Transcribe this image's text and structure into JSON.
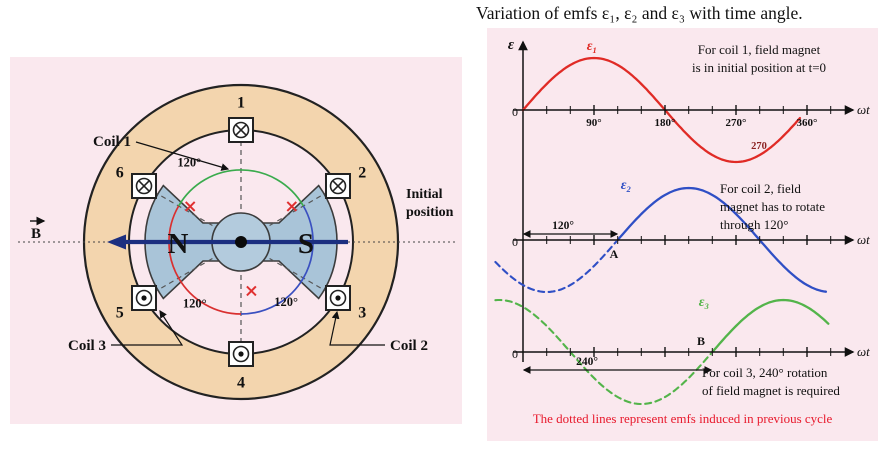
{
  "title": "Variation of emfs ε₁, ε₂ and ε₃ with time angle.",
  "colors": {
    "panel_bg": "#fae8ee",
    "ring": "#f3d5ae",
    "rotor": "#a9c4d8",
    "emf1": "#e02b26",
    "emf2": "#2f4fc5",
    "emf3": "#53b44a",
    "north": "#d42b2b",
    "south": "#20309d",
    "b_arrow": "#1c2f80",
    "footnote": "#e8192c",
    "cross_mark": "#e03030",
    "arc_green": "#3aab4d",
    "arc_red": "#d93030",
    "arc_blue": "#3a50c0"
  },
  "left_diagram": {
    "coil1_label": "Coil 1",
    "coil2_label": "Coil 2",
    "coil3_label": "Coil 3",
    "initial_position_line1": "Initial",
    "initial_position_line2": "position",
    "b_label": "B",
    "north_label": "N",
    "south_label": "S",
    "slots": [
      {
        "number": "1",
        "angle_deg": 90,
        "symbol": "cross"
      },
      {
        "number": "2",
        "angle_deg": 30,
        "symbol": "cross"
      },
      {
        "number": "3",
        "angle_deg": 330,
        "symbol": "dot"
      },
      {
        "number": "4",
        "angle_deg": 270,
        "symbol": "dot"
      },
      {
        "number": "5",
        "angle_deg": 210,
        "symbol": "dot"
      },
      {
        "number": "6",
        "angle_deg": 150,
        "symbol": "cross"
      }
    ],
    "angle_arcs": [
      {
        "label": "120°",
        "from_deg": 30,
        "to_deg": 150,
        "color_key": "arc_green"
      },
      {
        "label": "120°",
        "from_deg": 150,
        "to_deg": 270,
        "color_key": "arc_red"
      },
      {
        "label": "120°",
        "from_deg": 270,
        "to_deg": 390,
        "color_key": "arc_blue"
      }
    ],
    "cross_marks": [
      {
        "deg": 35,
        "r": 62
      },
      {
        "deg": 145,
        "r": 62
      },
      {
        "deg": 282,
        "r": 50
      }
    ]
  },
  "right_panel": {
    "eps_axis_label": "ε",
    "omega_t_label": "ωt",
    "zero_label": "0",
    "graph1": {
      "curve_label": "ε₁",
      "tick_labels": [
        "90°",
        "180°",
        "270°",
        "360°"
      ],
      "extra_label": "270",
      "note_line1": "For coil 1, field magnet",
      "note_line2": "is in initial position at t=0"
    },
    "graph2": {
      "curve_label": "ε₂",
      "span_label": "120°",
      "point_label": "A",
      "note_line1": "For coil 2, field",
      "note_line2": "magnet has to rotate",
      "note_line3": "through 120°"
    },
    "graph3": {
      "curve_label": "ε₃",
      "span_label": "240°",
      "point_label": "B",
      "note_line1": "For coil 3, 240° rotation",
      "note_line2": "of field magnet is required"
    },
    "footnote": "The dotted lines represent emfs induced in previous cycle"
  },
  "chart_data": {
    "type": "line",
    "title": "Variation of emfs ε₁, ε₂ and ε₃ with time angle",
    "xlabel": "ωt (degrees)",
    "ylabel": "ε",
    "x_ticks_deg": [
      90,
      180,
      270,
      360
    ],
    "amplitude": 1,
    "value_function": "ε = ε₀ · sin(ωt − phase_shift)",
    "series": [
      {
        "name": "ε₁",
        "phase_shift_deg": 0,
        "solid_deg": [
          0,
          352
        ],
        "dotted_deg": null,
        "color_key": "emf1"
      },
      {
        "name": "ε₂",
        "phase_shift_deg": 120,
        "solid_deg": [
          120,
          385
        ],
        "dotted_deg": [
          -35,
          120
        ],
        "color_key": "emf2"
      },
      {
        "name": "ε₃",
        "phase_shift_deg": 240,
        "solid_deg": [
          240,
          388
        ],
        "dotted_deg": [
          -35,
          240
        ],
        "color_key": "emf3"
      }
    ]
  }
}
